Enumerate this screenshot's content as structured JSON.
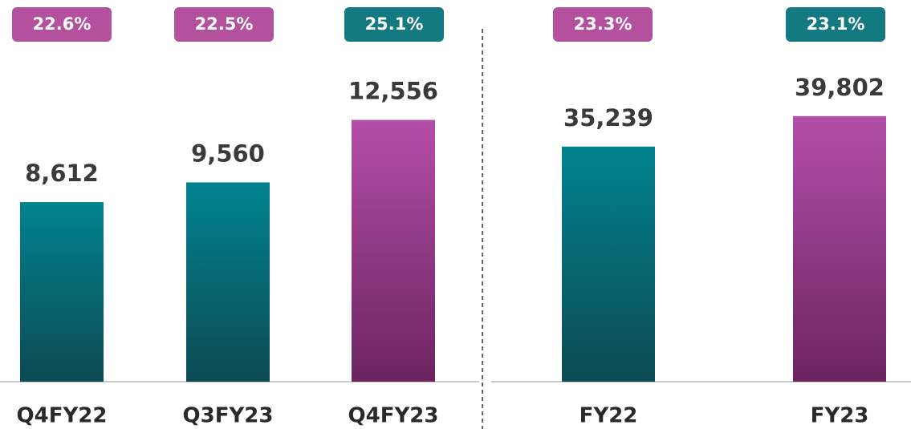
{
  "chart_data": [
    {
      "type": "bar",
      "categories": [
        "Q4FY22",
        "Q3FY23",
        "Q4FY23"
      ],
      "values": [
        8612,
        9560,
        12556
      ],
      "value_labels": [
        "8,612",
        "9,560",
        "12,556"
      ],
      "colors": [
        "teal",
        "teal",
        "magenta"
      ],
      "margins": [
        22.6,
        22.5,
        25.1
      ],
      "margin_labels": [
        "22.6%",
        "22.5%",
        "25.1%"
      ],
      "badge_colors": [
        "magenta",
        "magenta",
        "teal"
      ],
      "ylim": [
        0,
        16000
      ]
    },
    {
      "type": "bar",
      "categories": [
        "FY22",
        "FY23"
      ],
      "values": [
        35239,
        39802
      ],
      "value_labels": [
        "35,239",
        "39,802"
      ],
      "colors": [
        "teal",
        "magenta"
      ],
      "margins": [
        23.3,
        23.1
      ],
      "margin_labels": [
        "23.3%",
        "23.1%"
      ],
      "badge_colors": [
        "magenta",
        "teal"
      ],
      "ylim": [
        0,
        50000
      ]
    }
  ]
}
